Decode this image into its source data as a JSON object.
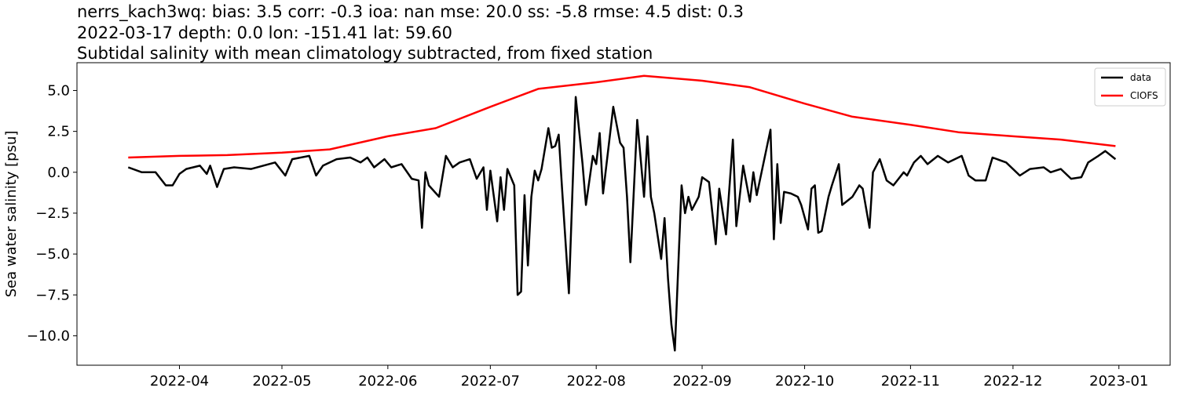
{
  "chart_data": {
    "type": "line",
    "title": [
      "nerrs_kach3wq: bias: 3.5  corr: -0.3  ioa: nan  mse: 20.0  ss: -5.8  rmse: 4.5  dist: 0.3",
      "2022-03-17 depth: 0.0 lon: -151.41 lat: 59.60",
      "Subtidal salinity with mean climatology subtracted, from fixed station"
    ],
    "y_label": "Sea water salinity [psu]",
    "xlim": [
      "2022-03-02",
      "2023-01-16"
    ],
    "xticks": [
      {
        "value": "2022-04-01",
        "label": "2022-04"
      },
      {
        "value": "2022-05-01",
        "label": "2022-05"
      },
      {
        "value": "2022-06-01",
        "label": "2022-06"
      },
      {
        "value": "2022-07-01",
        "label": "2022-07"
      },
      {
        "value": "2022-08-01",
        "label": "2022-08"
      },
      {
        "value": "2022-09-01",
        "label": "2022-09"
      },
      {
        "value": "2022-10-01",
        "label": "2022-10"
      },
      {
        "value": "2022-11-01",
        "label": "2022-11"
      },
      {
        "value": "2022-12-01",
        "label": "2022-12"
      },
      {
        "value": "2023-01-01",
        "label": "2023-01"
      }
    ],
    "ylim": [
      -11.8,
      6.7
    ],
    "yticks": [
      {
        "value": -10,
        "label": "−10.0"
      },
      {
        "value": -7.5,
        "label": "−7.5"
      },
      {
        "value": -5,
        "label": "−5.0"
      },
      {
        "value": -2.5,
        "label": "−2.5"
      },
      {
        "value": 0,
        "label": "0.0"
      },
      {
        "value": 2.5,
        "label": "2.5"
      },
      {
        "value": 5,
        "label": "5.0"
      }
    ],
    "grid": false,
    "legend": "upper right",
    "series": [
      {
        "name": "data",
        "color": "#000000",
        "x": [
          "2022-03-17",
          "2022-03-21",
          "2022-03-25",
          "2022-03-28",
          "2022-03-30",
          "2022-04-01",
          "2022-04-03",
          "2022-04-07",
          "2022-04-09",
          "2022-04-10",
          "2022-04-12",
          "2022-04-14",
          "2022-04-17",
          "2022-04-22",
          "2022-04-29",
          "2022-05-02",
          "2022-05-04",
          "2022-05-09",
          "2022-05-11",
          "2022-05-13",
          "2022-05-17",
          "2022-05-21",
          "2022-05-24",
          "2022-05-26",
          "2022-05-28",
          "2022-05-31",
          "2022-06-02",
          "2022-06-05",
          "2022-06-08",
          "2022-06-10",
          "2022-06-11",
          "2022-06-12",
          "2022-06-13",
          "2022-06-16",
          "2022-06-18",
          "2022-06-20",
          "2022-06-22",
          "2022-06-25",
          "2022-06-27",
          "2022-06-29",
          "2022-06-30",
          "2022-07-01",
          "2022-07-03",
          "2022-07-04",
          "2022-07-05",
          "2022-07-06",
          "2022-07-08",
          "2022-07-09",
          "2022-07-10",
          "2022-07-11",
          "2022-07-12",
          "2022-07-13",
          "2022-07-14",
          "2022-07-15",
          "2022-07-16",
          "2022-07-18",
          "2022-07-19",
          "2022-07-20",
          "2022-07-21",
          "2022-07-22",
          "2022-07-24",
          "2022-07-26",
          "2022-07-28",
          "2022-07-29",
          "2022-07-31",
          "2022-08-01",
          "2022-08-02",
          "2022-08-03",
          "2022-08-06",
          "2022-08-08",
          "2022-08-09",
          "2022-08-10",
          "2022-08-11",
          "2022-08-13",
          "2022-08-15",
          "2022-08-16",
          "2022-08-17",
          "2022-08-18",
          "2022-08-20",
          "2022-08-21",
          "2022-08-22",
          "2022-08-23",
          "2022-08-24",
          "2022-08-26",
          "2022-08-27",
          "2022-08-28",
          "2022-08-29",
          "2022-08-31",
          "2022-09-01",
          "2022-09-03",
          "2022-09-05",
          "2022-09-06",
          "2022-09-08",
          "2022-09-10",
          "2022-09-11",
          "2022-09-13",
          "2022-09-15",
          "2022-09-16",
          "2022-09-17",
          "2022-09-21",
          "2022-09-22",
          "2022-09-23",
          "2022-09-24",
          "2022-09-25",
          "2022-09-27",
          "2022-09-29",
          "2022-09-30",
          "2022-10-02",
          "2022-10-03",
          "2022-10-04",
          "2022-10-05",
          "2022-10-06",
          "2022-10-08",
          "2022-10-09",
          "2022-10-11",
          "2022-10-12",
          "2022-10-15",
          "2022-10-17",
          "2022-10-18",
          "2022-10-20",
          "2022-10-21",
          "2022-10-23",
          "2022-10-25",
          "2022-10-27",
          "2022-10-30",
          "2022-10-31",
          "2022-11-02",
          "2022-11-04",
          "2022-11-06",
          "2022-11-09",
          "2022-11-12",
          "2022-11-16",
          "2022-11-18",
          "2022-11-20",
          "2022-11-23",
          "2022-11-25",
          "2022-11-29",
          "2022-12-03",
          "2022-12-06",
          "2022-12-10",
          "2022-12-12",
          "2022-12-15",
          "2022-12-18",
          "2022-12-21",
          "2022-12-23",
          "2022-12-26",
          "2022-12-28",
          "2022-12-31"
        ],
        "values": [
          0.3,
          0.0,
          0.0,
          -0.8,
          -0.8,
          -0.1,
          0.2,
          0.4,
          -0.1,
          0.4,
          -0.9,
          0.2,
          0.3,
          0.2,
          0.6,
          -0.2,
          0.8,
          1.0,
          -0.2,
          0.4,
          0.8,
          0.9,
          0.6,
          0.9,
          0.3,
          0.8,
          0.3,
          0.5,
          -0.4,
          -0.5,
          -3.4,
          0.0,
          -0.8,
          -1.5,
          1.0,
          0.3,
          0.6,
          0.8,
          -0.4,
          0.3,
          -2.3,
          0.1,
          -3.0,
          -0.3,
          -2.3,
          0.2,
          -0.8,
          -7.5,
          -7.3,
          -1.4,
          -5.7,
          -1.5,
          0.1,
          -0.5,
          0.2,
          2.7,
          1.5,
          1.6,
          2.3,
          -1.0,
          -7.4,
          4.6,
          0.5,
          -2.0,
          1.0,
          0.5,
          2.4,
          -1.3,
          4.0,
          1.8,
          1.5,
          -1.5,
          -5.5,
          3.2,
          -1.5,
          2.2,
          -1.5,
          -2.5,
          -5.3,
          -2.8,
          -6.5,
          -9.3,
          -10.9,
          -0.8,
          -2.5,
          -1.5,
          -2.3,
          -1.5,
          -0.3,
          -0.6,
          -4.4,
          -1.0,
          -3.8,
          2.0,
          -3.3,
          0.4,
          -1.8,
          0.0,
          -1.4,
          2.6,
          -4.1,
          0.5,
          -3.1,
          -1.2,
          -1.3,
          -1.5,
          -2.0,
          -3.5,
          -1.0,
          -0.8,
          -3.7,
          -3.6,
          -1.5,
          -0.8,
          0.5,
          -2.0,
          -1.5,
          -0.8,
          -1.0,
          -3.4,
          0.0,
          0.8,
          -0.5,
          -0.8,
          0.0,
          -0.2,
          0.6,
          1.0,
          0.5,
          1.0,
          0.6,
          1.0,
          -0.2,
          -0.5,
          -0.5,
          0.9,
          0.6,
          -0.2,
          0.2,
          0.3,
          0.0,
          0.2,
          -0.4,
          -0.3,
          0.6,
          1.0,
          1.3,
          0.8
        ]
      },
      {
        "name": "CIOFS",
        "color": "#ff0000",
        "x": [
          "2022-03-17",
          "2022-04-01",
          "2022-04-15",
          "2022-05-01",
          "2022-05-15",
          "2022-06-01",
          "2022-06-15",
          "2022-07-01",
          "2022-07-15",
          "2022-08-01",
          "2022-08-15",
          "2022-09-01",
          "2022-09-15",
          "2022-10-01",
          "2022-10-15",
          "2022-11-01",
          "2022-11-15",
          "2022-12-01",
          "2022-12-15",
          "2022-12-31"
        ],
        "values": [
          0.9,
          1.0,
          1.05,
          1.2,
          1.4,
          2.2,
          2.7,
          4.0,
          5.1,
          5.5,
          5.9,
          5.6,
          5.2,
          4.2,
          3.4,
          2.9,
          2.45,
          2.2,
          2.0,
          1.6
        ]
      }
    ]
  }
}
